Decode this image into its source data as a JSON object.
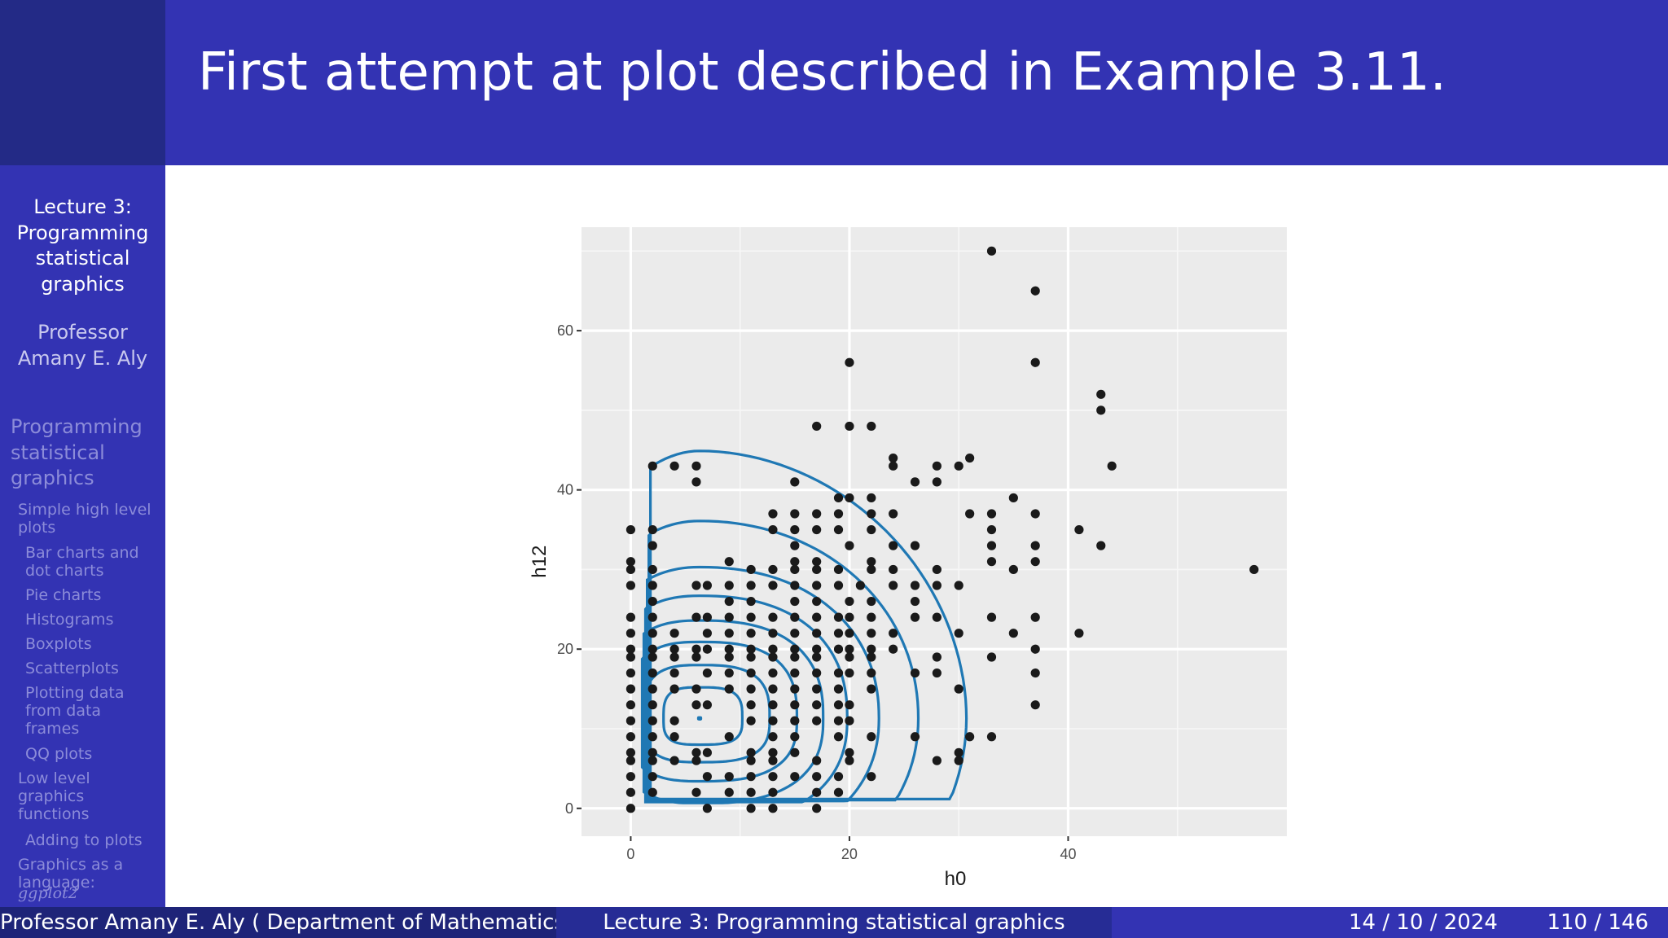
{
  "slide": {
    "title": "First attempt at plot described in Example 3.11."
  },
  "sidebar": {
    "lecture_title_lines": [
      "Lecture 3:",
      "Programming",
      "statistical",
      "graphics"
    ],
    "author_lines": [
      "Professor",
      "Amany E. Aly"
    ],
    "section_lines": [
      "Programming",
      "statistical",
      "graphics"
    ],
    "subsections": [
      {
        "lines": [
          "Simple high level",
          "plots"
        ]
      },
      {
        "lines": [
          "Bar charts and",
          "dot charts"
        ]
      },
      {
        "lines": [
          "Pie charts"
        ]
      },
      {
        "lines": [
          "Histograms"
        ]
      },
      {
        "lines": [
          "Boxplots"
        ]
      },
      {
        "lines": [
          "Scatterplots"
        ]
      },
      {
        "lines": [
          "Plotting data",
          "from data",
          "frames"
        ]
      },
      {
        "lines": [
          "QQ plots"
        ]
      },
      {
        "lines": [
          "Low level",
          "graphics",
          "functions"
        ]
      },
      {
        "lines": [
          "Adding to plots"
        ]
      },
      {
        "lines": [
          "Graphics as a",
          "language:"
        ]
      }
    ],
    "cut_text": "ggplot2"
  },
  "footer": {
    "author": "Professor Amany E. Aly ( Department of Mathematics, Faculty of Science, Cairo University )",
    "lecture": "Lecture 3: Programming statistical graphics",
    "date": "14 / 10 / 2024",
    "page": "110 / 146"
  },
  "chart_data": {
    "type": "scatter",
    "xlabel": "h0",
    "ylabel": "h12",
    "xlim": [
      -4.5,
      60
    ],
    "ylim": [
      -3.5,
      73
    ],
    "x_ticks": [
      0,
      20,
      40
    ],
    "y_ticks": [
      0,
      20,
      40,
      60
    ],
    "grid": true,
    "background": "#ebebeb",
    "point_color": "#1a1a1a",
    "contour_color": "#1f78b4",
    "points": [
      [
        33,
        70
      ],
      [
        37,
        65
      ],
      [
        20,
        56
      ],
      [
        37,
        56
      ],
      [
        43,
        52
      ],
      [
        43,
        50
      ],
      [
        17,
        48
      ],
      [
        20,
        48
      ],
      [
        22,
        48
      ],
      [
        24,
        44
      ],
      [
        31,
        44
      ],
      [
        24,
        43
      ],
      [
        28,
        43
      ],
      [
        30,
        43
      ],
      [
        44,
        43
      ],
      [
        2,
        43
      ],
      [
        4,
        43
      ],
      [
        6,
        43
      ],
      [
        6,
        41
      ],
      [
        15,
        41
      ],
      [
        26,
        41
      ],
      [
        28,
        41
      ],
      [
        35,
        39
      ],
      [
        19,
        39
      ],
      [
        20,
        39
      ],
      [
        22,
        39
      ],
      [
        13,
        37
      ],
      [
        15,
        37
      ],
      [
        17,
        37
      ],
      [
        19,
        37
      ],
      [
        22,
        37
      ],
      [
        24,
        37
      ],
      [
        31,
        37
      ],
      [
        33,
        37
      ],
      [
        37,
        37
      ],
      [
        13,
        35
      ],
      [
        15,
        35
      ],
      [
        17,
        35
      ],
      [
        19,
        35
      ],
      [
        22,
        35
      ],
      [
        33,
        35
      ],
      [
        41,
        35
      ],
      [
        0,
        35
      ],
      [
        2,
        35
      ],
      [
        15,
        33
      ],
      [
        20,
        33
      ],
      [
        24,
        33
      ],
      [
        26,
        33
      ],
      [
        33,
        33
      ],
      [
        37,
        33
      ],
      [
        43,
        33
      ],
      [
        2,
        33
      ],
      [
        9,
        31
      ],
      [
        15,
        31
      ],
      [
        17,
        31
      ],
      [
        22,
        31
      ],
      [
        33,
        31
      ],
      [
        37,
        31
      ],
      [
        0,
        31
      ],
      [
        0,
        30
      ],
      [
        2,
        30
      ],
      [
        11,
        30
      ],
      [
        13,
        30
      ],
      [
        15,
        30
      ],
      [
        17,
        30
      ],
      [
        19,
        30
      ],
      [
        22,
        30
      ],
      [
        24,
        30
      ],
      [
        28,
        30
      ],
      [
        35,
        30
      ],
      [
        57,
        30
      ],
      [
        0,
        28
      ],
      [
        2,
        28
      ],
      [
        6,
        28
      ],
      [
        7,
        28
      ],
      [
        9,
        28
      ],
      [
        11,
        28
      ],
      [
        13,
        28
      ],
      [
        15,
        28
      ],
      [
        17,
        28
      ],
      [
        19,
        28
      ],
      [
        21,
        28
      ],
      [
        24,
        28
      ],
      [
        26,
        28
      ],
      [
        28,
        28
      ],
      [
        30,
        28
      ],
      [
        2,
        26
      ],
      [
        9,
        26
      ],
      [
        11,
        26
      ],
      [
        15,
        26
      ],
      [
        17,
        26
      ],
      [
        20,
        26
      ],
      [
        22,
        26
      ],
      [
        26,
        26
      ],
      [
        0,
        24
      ],
      [
        2,
        24
      ],
      [
        6,
        24
      ],
      [
        7,
        24
      ],
      [
        9,
        24
      ],
      [
        11,
        24
      ],
      [
        13,
        24
      ],
      [
        15,
        24
      ],
      [
        17,
        24
      ],
      [
        19,
        24
      ],
      [
        20,
        24
      ],
      [
        22,
        24
      ],
      [
        26,
        24
      ],
      [
        28,
        24
      ],
      [
        33,
        24
      ],
      [
        37,
        24
      ],
      [
        0,
        22
      ],
      [
        2,
        22
      ],
      [
        4,
        22
      ],
      [
        7,
        22
      ],
      [
        9,
        22
      ],
      [
        11,
        22
      ],
      [
        13,
        22
      ],
      [
        15,
        22
      ],
      [
        17,
        22
      ],
      [
        19,
        22
      ],
      [
        20,
        22
      ],
      [
        22,
        22
      ],
      [
        24,
        22
      ],
      [
        30,
        22
      ],
      [
        35,
        22
      ],
      [
        41,
        22
      ],
      [
        0,
        20
      ],
      [
        2,
        20
      ],
      [
        4,
        20
      ],
      [
        6,
        20
      ],
      [
        7,
        20
      ],
      [
        9,
        20
      ],
      [
        11,
        20
      ],
      [
        13,
        20
      ],
      [
        15,
        20
      ],
      [
        17,
        20
      ],
      [
        19,
        20
      ],
      [
        20,
        20
      ],
      [
        22,
        20
      ],
      [
        24,
        20
      ],
      [
        37,
        20
      ],
      [
        0,
        19
      ],
      [
        2,
        19
      ],
      [
        4,
        19
      ],
      [
        6,
        19
      ],
      [
        9,
        19
      ],
      [
        11,
        19
      ],
      [
        13,
        19
      ],
      [
        15,
        19
      ],
      [
        17,
        19
      ],
      [
        20,
        19
      ],
      [
        22,
        19
      ],
      [
        28,
        19
      ],
      [
        33,
        19
      ],
      [
        0,
        17
      ],
      [
        2,
        17
      ],
      [
        4,
        17
      ],
      [
        7,
        17
      ],
      [
        9,
        17
      ],
      [
        11,
        17
      ],
      [
        13,
        17
      ],
      [
        15,
        17
      ],
      [
        17,
        17
      ],
      [
        19,
        17
      ],
      [
        20,
        17
      ],
      [
        22,
        17
      ],
      [
        26,
        17
      ],
      [
        28,
        17
      ],
      [
        37,
        17
      ],
      [
        0,
        15
      ],
      [
        2,
        15
      ],
      [
        4,
        15
      ],
      [
        6,
        15
      ],
      [
        9,
        15
      ],
      [
        11,
        15
      ],
      [
        13,
        15
      ],
      [
        15,
        15
      ],
      [
        17,
        15
      ],
      [
        19,
        15
      ],
      [
        22,
        15
      ],
      [
        30,
        15
      ],
      [
        0,
        13
      ],
      [
        2,
        13
      ],
      [
        6,
        13
      ],
      [
        7,
        13
      ],
      [
        11,
        13
      ],
      [
        13,
        13
      ],
      [
        15,
        13
      ],
      [
        17,
        13
      ],
      [
        19,
        13
      ],
      [
        20,
        13
      ],
      [
        37,
        13
      ],
      [
        0,
        11
      ],
      [
        2,
        11
      ],
      [
        4,
        11
      ],
      [
        11,
        11
      ],
      [
        13,
        11
      ],
      [
        15,
        11
      ],
      [
        17,
        11
      ],
      [
        19,
        11
      ],
      [
        20,
        11
      ],
      [
        0,
        9
      ],
      [
        2,
        9
      ],
      [
        4,
        9
      ],
      [
        9,
        9
      ],
      [
        13,
        9
      ],
      [
        15,
        9
      ],
      [
        19,
        9
      ],
      [
        22,
        9
      ],
      [
        26,
        9
      ],
      [
        31,
        9
      ],
      [
        33,
        9
      ],
      [
        0,
        7
      ],
      [
        2,
        7
      ],
      [
        6,
        7
      ],
      [
        7,
        7
      ],
      [
        11,
        7
      ],
      [
        13,
        7
      ],
      [
        15,
        7
      ],
      [
        20,
        7
      ],
      [
        30,
        7
      ],
      [
        0,
        6
      ],
      [
        2,
        6
      ],
      [
        4,
        6
      ],
      [
        6,
        6
      ],
      [
        11,
        6
      ],
      [
        13,
        6
      ],
      [
        17,
        6
      ],
      [
        20,
        6
      ],
      [
        28,
        6
      ],
      [
        30,
        6
      ],
      [
        0,
        4
      ],
      [
        2,
        4
      ],
      [
        7,
        4
      ],
      [
        9,
        4
      ],
      [
        11,
        4
      ],
      [
        13,
        4
      ],
      [
        15,
        4
      ],
      [
        17,
        4
      ],
      [
        19,
        4
      ],
      [
        22,
        4
      ],
      [
        0,
        2
      ],
      [
        2,
        2
      ],
      [
        6,
        2
      ],
      [
        9,
        2
      ],
      [
        11,
        2
      ],
      [
        13,
        2
      ],
      [
        17,
        2
      ],
      [
        19,
        2
      ],
      [
        0,
        0
      ],
      [
        7,
        0
      ],
      [
        11,
        0
      ],
      [
        13,
        0
      ],
      [
        17,
        0
      ]
    ],
    "mode_point": [
      6.3,
      11.3
    ]
  }
}
